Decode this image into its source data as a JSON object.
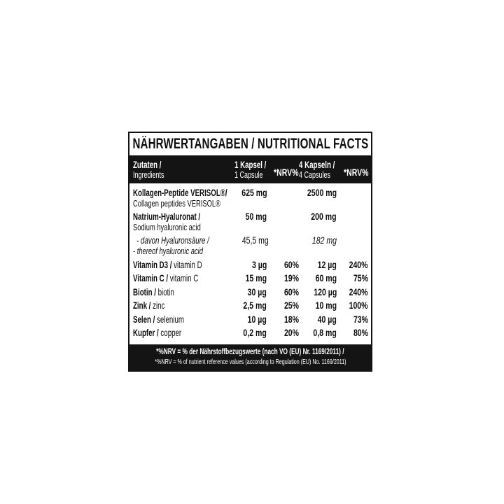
{
  "title": "NÄHRWERTANGABEN / NUTRITIONAL FACTS",
  "header": {
    "col1_de": "Zutaten /",
    "col1_en": "Ingredients",
    "col2_de": "1 Kapsel /",
    "col2_en": "1 Capsule",
    "col3": "*NRV%",
    "col4_de": "4 Kapseln /",
    "col4_en": "4 Capsules",
    "col5": "*NRV%"
  },
  "rows": [
    {
      "de": "Kollagen-Peptide VERISOL®/",
      "en": "Collagen peptides VERISOL®",
      "v1": "625 mg",
      "nrv1": "",
      "v4": "2500 mg",
      "nrv4": ""
    },
    {
      "de": "Natrium-Hyaluronat /",
      "en": "Sodium hyaluronic acid",
      "v1": "50 mg",
      "nrv1": "",
      "v4": "200 mg",
      "nrv4": ""
    },
    {
      "de": "- davon Hyaluronsäure /",
      "en": "- thereof hyaluronic acid",
      "v1": "45,5 mg",
      "nrv1": "",
      "v4": "182 mg",
      "nrv4": ""
    },
    {
      "de": "Vitamin D3 / ",
      "en": "vitamin D",
      "v1": "3 µg",
      "nrv1": "60%",
      "v4": "12 µg",
      "nrv4": "240%"
    },
    {
      "de": "Vitamin C / ",
      "en": "vitamin C",
      "v1": "15 mg",
      "nrv1": "19%",
      "v4": "60 mg",
      "nrv4": "75%"
    },
    {
      "de": "Biotin / ",
      "en": "biotin",
      "v1": "30 µg",
      "nrv1": "60%",
      "v4": "120 µg",
      "nrv4": "240%"
    },
    {
      "de": "Zink / ",
      "en": "zinc",
      "v1": "2,5 mg",
      "nrv1": "25%",
      "v4": "10 mg",
      "nrv4": "100%"
    },
    {
      "de": "Selen / ",
      "en": "selenium",
      "v1": "10 µg",
      "nrv1": "18%",
      "v4": "40 µg",
      "nrv4": "73%"
    },
    {
      "de": "Kupfer / ",
      "en": "copper",
      "v1": "0,2 mg",
      "nrv1": "20%",
      "v4": "0,8 mg",
      "nrv4": "80%"
    }
  ],
  "footnote": {
    "de": "*%NRV = % der Nährstoffbezugswerte (nach VO (EU) Nr. 1169/2011) /",
    "en": "*%NRV = % of nutrient reference values (according to Regulation (EU) No. 1169/2011)"
  }
}
